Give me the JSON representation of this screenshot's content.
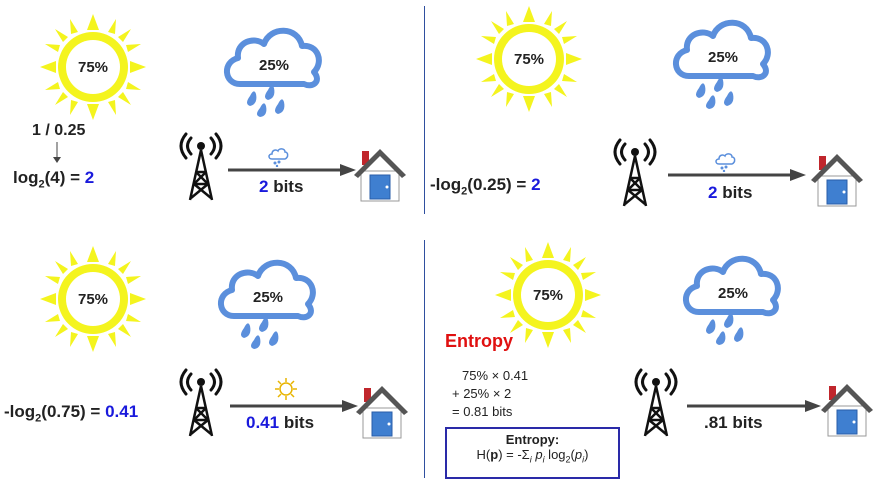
{
  "panels": [
    {
      "sun_pct": "75%",
      "cloud_pct": "25%",
      "inverse": "1 / 0.25",
      "eq_prefix": "log",
      "eq_sub": "2",
      "eq_arg": "(4) = ",
      "eq_value": "2",
      "bits_value": "2",
      "bits_unit": " bits",
      "message_icon": "rain-cloud-icon"
    },
    {
      "sun_pct": "75%",
      "cloud_pct": "25%",
      "eq_prefix": "-log",
      "eq_sub": "2",
      "eq_arg": "(0.25) = ",
      "eq_value": "2",
      "bits_value": "2",
      "bits_unit": " bits",
      "message_icon": "rain-cloud-icon"
    },
    {
      "sun_pct": "75%",
      "cloud_pct": "25%",
      "eq_prefix": "-log",
      "eq_sub": "2",
      "eq_arg": "(0.75) = ",
      "eq_value": "0.41",
      "bits_value": "0.41",
      "bits_unit": " bits",
      "message_icon": "sun-icon"
    },
    {
      "sun_pct": "75%",
      "cloud_pct": "25%",
      "bits_value": ".81 bits",
      "entropy_title": "Entropy",
      "calc_line1": "75% × 0.41",
      "calc_line2": "+ 25% × 2",
      "calc_line3": "= 0.81 bits",
      "box_title": "Entropy:",
      "formula": {
        "h": "H(",
        "p": "p",
        "eq": ") = -Σ",
        "i1": "i",
        "pi": " p",
        "i2": "i",
        "log": " log",
        "two": "2",
        "open": "(",
        "p2": "p",
        "i3": "i",
        "close": ")"
      }
    }
  ],
  "colors": {
    "sun": "#f4f41e",
    "cloud": "#5b8fdc",
    "value_blue": "#1a1adc",
    "entropy_red": "#e01010",
    "divider": "#2f4f9f"
  }
}
